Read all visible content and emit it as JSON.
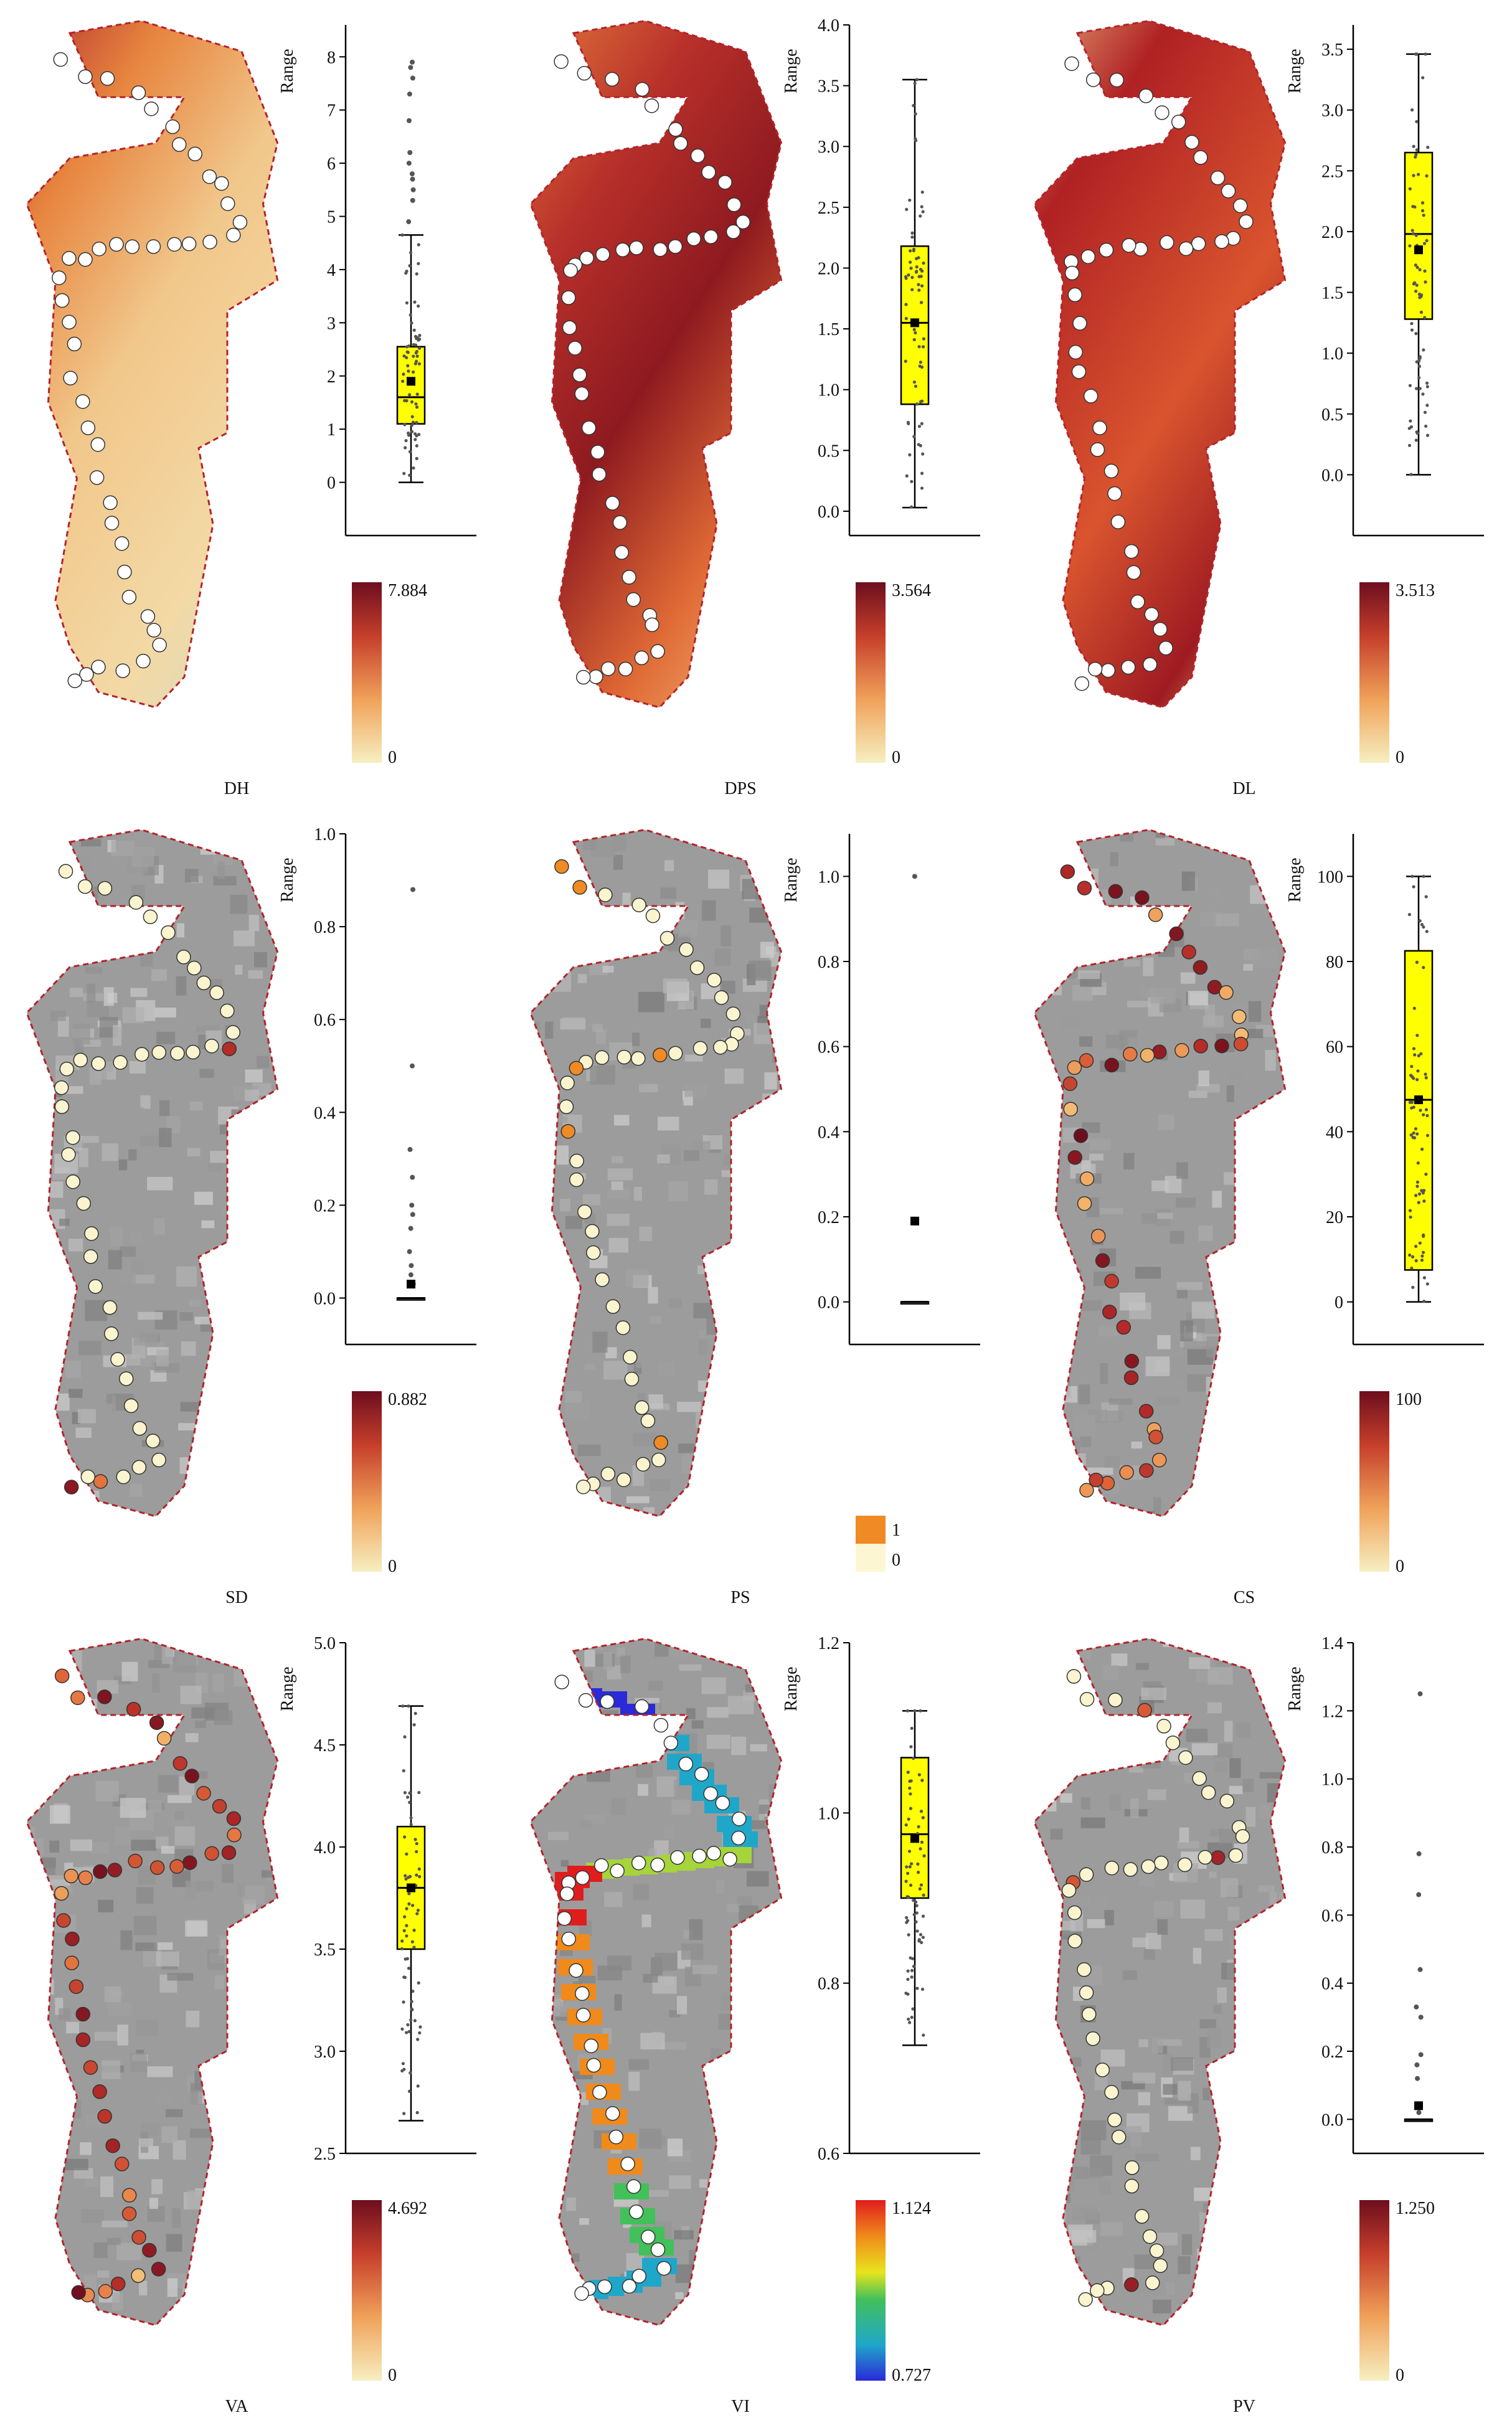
{
  "figure": {
    "panels": [
      {
        "id": "DH",
        "title": "DH",
        "kind": "heat",
        "cb_min": "0",
        "cb_max": "7.884",
        "cb_type": "heat",
        "box": {
          "ticks": [
            "0",
            "1",
            "2",
            "3",
            "4",
            "5",
            "6",
            "7",
            "8"
          ],
          "ymin": -1,
          "ymax": 8.6,
          "q1": 1.1,
          "med": 1.6,
          "q3": 2.55,
          "whislo": 0.0,
          "whishi": 4.65,
          "mean": 1.9,
          "outliers": [
            4.9,
            5.3,
            5.5,
            5.7,
            5.8,
            6.0,
            6.2,
            6.8,
            7.3,
            7.6,
            7.8,
            7.9
          ],
          "yellow": true,
          "ylabel": "Range"
        }
      },
      {
        "id": "DPS",
        "title": "DPS",
        "kind": "heat",
        "cb_min": "0",
        "cb_max": "3.564",
        "cb_type": "heat",
        "box": {
          "ticks": [
            "0.0",
            "0.5",
            "1.0",
            "1.5",
            "2.0",
            "2.5",
            "3.0",
            "3.5",
            "4.0"
          ],
          "ymin": -0.2,
          "ymax": 4.0,
          "q1": 0.88,
          "med": 1.55,
          "q3": 2.18,
          "whislo": 0.03,
          "whishi": 3.55,
          "mean": 1.55,
          "outliers": [],
          "yellow": true,
          "ylabel": "Range"
        }
      },
      {
        "id": "DL",
        "title": "DL",
        "kind": "heat",
        "cb_min": "0",
        "cb_max": "3.513",
        "cb_type": "heat",
        "box": {
          "ticks": [
            "0.0",
            "0.5",
            "1.0",
            "1.5",
            "2.0",
            "2.5",
            "3.0",
            "3.5"
          ],
          "ymin": -0.5,
          "ymax": 3.7,
          "q1": 1.28,
          "med": 1.98,
          "q3": 2.65,
          "whislo": 0.0,
          "whishi": 3.46,
          "mean": 1.85,
          "outliers": [],
          "yellow": true,
          "ylabel": "Range"
        }
      },
      {
        "id": "SD",
        "title": "SD",
        "kind": "points",
        "cb_min": "0",
        "cb_max": "0.882",
        "cb_type": "heat",
        "box": {
          "ticks": [
            "0.0",
            "0.2",
            "0.4",
            "0.6",
            "0.8",
            "1.0"
          ],
          "ymin": -0.1,
          "ymax": 1.0,
          "q1": 0.0,
          "med": 0.0,
          "q3": 0.0,
          "whislo": 0.0,
          "whishi": 0.0,
          "mean": 0.03,
          "outliers": [
            0.03,
            0.05,
            0.07,
            0.1,
            0.15,
            0.18,
            0.2,
            0.26,
            0.32,
            0.5,
            0.88
          ],
          "yellow": false,
          "ylabel": "Range"
        }
      },
      {
        "id": "PS",
        "title": "PS",
        "kind": "points",
        "cb_min": "0",
        "cb_max": "1",
        "cb_type": "binary",
        "box": {
          "ticks": [
            "0.0",
            "0.2",
            "0.4",
            "0.6",
            "0.8",
            "1.0"
          ],
          "ymin": -0.1,
          "ymax": 1.1,
          "q1": 0.0,
          "med": 0.0,
          "q3": 0.0,
          "whislo": 0.0,
          "whishi": 0.0,
          "mean": 0.19,
          "outliers": [
            1.0
          ],
          "yellow": false,
          "ylabel": "Range"
        }
      },
      {
        "id": "CS",
        "title": "CS",
        "kind": "points",
        "cb_min": "0",
        "cb_max": "100",
        "cb_type": "heat",
        "box": {
          "ticks": [
            "0",
            "20",
            "40",
            "60",
            "80",
            "100"
          ],
          "ymin": -10,
          "ymax": 110,
          "q1": 7.5,
          "med": 47.5,
          "q3": 82.5,
          "whislo": 0.0,
          "whishi": 100,
          "mean": 47.5,
          "outliers": [],
          "yellow": true,
          "ylabel": "Range"
        }
      },
      {
        "id": "VA",
        "title": "VA",
        "kind": "points",
        "cb_min": "0",
        "cb_max": "4.692",
        "cb_type": "heat",
        "box": {
          "ticks": [
            "2.5",
            "3.0",
            "3.5",
            "4.0",
            "4.5",
            "5.0"
          ],
          "ymin": 2.5,
          "ymax": 5.0,
          "q1": 3.5,
          "med": 3.8,
          "q3": 4.1,
          "whislo": 2.66,
          "whishi": 4.69,
          "mean": 3.8,
          "outliers": [],
          "yellow": true,
          "ylabel": "Range"
        }
      },
      {
        "id": "VI",
        "title": "VI",
        "kind": "vi",
        "cb_min": "0.727",
        "cb_max": "1.124",
        "cb_type": "spectral",
        "box": {
          "ticks": [
            "0.6",
            "0.8",
            "1.0",
            "1.2"
          ],
          "ymin": 0.6,
          "ymax": 1.2,
          "q1": 0.9,
          "med": 0.975,
          "q3": 1.065,
          "whislo": 0.727,
          "whishi": 1.12,
          "mean": 0.97,
          "outliers": [],
          "yellow": true,
          "ylabel": "Range"
        }
      },
      {
        "id": "PV",
        "title": "PV",
        "kind": "points",
        "cb_min": "0",
        "cb_max": "1.250",
        "cb_type": "heat",
        "box": {
          "ticks": [
            "0.0",
            "0.2",
            "0.4",
            "0.6",
            "0.8",
            "1.0",
            "1.2",
            "1.4"
          ],
          "ymin": -0.1,
          "ymax": 1.4,
          "q1": 0.0,
          "med": 0.0,
          "q3": 0.0,
          "whislo": 0.0,
          "whishi": 0.0,
          "mean": 0.04,
          "outliers": [
            0.02,
            0.04,
            0.12,
            0.16,
            0.19,
            0.3,
            0.33,
            0.44,
            0.66,
            0.78,
            1.25
          ],
          "yellow": false,
          "ylabel": "Range"
        }
      }
    ]
  },
  "chart_data": [
    {
      "type": "box",
      "panel": "DH",
      "ylabel": "Range",
      "ylim": [
        -1,
        8.6
      ],
      "q1": 1.1,
      "median": 1.6,
      "q3": 2.55,
      "whisker_low": 0.0,
      "whisker_high": 4.65,
      "colorbar": [
        0,
        7.884
      ]
    },
    {
      "type": "box",
      "panel": "DPS",
      "ylabel": "Range",
      "ylim": [
        -0.2,
        4.0
      ],
      "q1": 0.88,
      "median": 1.55,
      "q3": 2.18,
      "whisker_low": 0.03,
      "whisker_high": 3.55,
      "colorbar": [
        0,
        3.564
      ]
    },
    {
      "type": "box",
      "panel": "DL",
      "ylabel": "Range",
      "ylim": [
        -0.5,
        3.7
      ],
      "q1": 1.28,
      "median": 1.98,
      "q3": 2.65,
      "whisker_low": 0.0,
      "whisker_high": 3.46,
      "colorbar": [
        0,
        3.513
      ]
    },
    {
      "type": "box",
      "panel": "SD",
      "ylabel": "Range",
      "ylim": [
        -0.1,
        1.0
      ],
      "q1": 0,
      "median": 0,
      "q3": 0,
      "outliers": [
        0.05,
        0.1,
        0.18,
        0.2,
        0.26,
        0.32,
        0.5,
        0.88
      ],
      "colorbar": [
        0,
        0.882
      ]
    },
    {
      "type": "box",
      "panel": "PS",
      "ylabel": "Range",
      "ylim": [
        -0.1,
        1.1
      ],
      "q1": 0,
      "median": 0,
      "q3": 0,
      "outliers": [
        1.0
      ],
      "mean": 0.19,
      "colorbar": [
        0,
        1
      ]
    },
    {
      "type": "box",
      "panel": "CS",
      "ylabel": "Range",
      "ylim": [
        -10,
        110
      ],
      "q1": 7.5,
      "median": 47.5,
      "q3": 82.5,
      "whisker_low": 0,
      "whisker_high": 100,
      "colorbar": [
        0,
        100
      ]
    },
    {
      "type": "box",
      "panel": "VA",
      "ylabel": "Range",
      "ylim": [
        2.5,
        5.0
      ],
      "q1": 3.5,
      "median": 3.8,
      "q3": 4.1,
      "whisker_low": 2.66,
      "whisker_high": 4.69,
      "colorbar": [
        0,
        4.692
      ]
    },
    {
      "type": "box",
      "panel": "VI",
      "ylabel": "Range",
      "ylim": [
        0.6,
        1.2
      ],
      "q1": 0.9,
      "median": 0.975,
      "q3": 1.065,
      "whisker_low": 0.727,
      "whisker_high": 1.12,
      "colorbar": [
        0.727,
        1.124
      ]
    },
    {
      "type": "box",
      "panel": "PV",
      "ylabel": "Range",
      "ylim": [
        -0.1,
        1.4
      ],
      "q1": 0,
      "median": 0,
      "q3": 0,
      "outliers": [
        0.12,
        0.16,
        0.19,
        0.3,
        0.33,
        0.44,
        0.66,
        0.78,
        1.25
      ],
      "colorbar": [
        0,
        1.25
      ]
    }
  ]
}
